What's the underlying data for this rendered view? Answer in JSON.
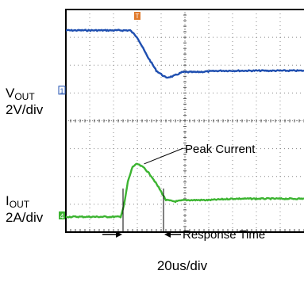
{
  "chart_data": {
    "type": "line",
    "title": "",
    "xlabel": "20us/div",
    "x_range_div": [
      0,
      10
    ],
    "grid": true,
    "grid_divisions": {
      "x": 10,
      "y": 8
    },
    "background": "#ffffff",
    "series": [
      {
        "channel": "1",
        "color": "#1f4fb0",
        "label_main": "V",
        "label_sub": "OUT",
        "scale": "2V/div",
        "marker_level_div": 5.1,
        "points_div": [
          [
            0.0,
            7.25
          ],
          [
            2.7,
            7.25
          ],
          [
            3.0,
            7.0
          ],
          [
            3.4,
            6.35
          ],
          [
            3.8,
            5.8
          ],
          [
            4.2,
            5.55
          ],
          [
            4.5,
            5.6
          ],
          [
            4.9,
            5.75
          ],
          [
            5.5,
            5.75
          ],
          [
            6.5,
            5.8
          ],
          [
            8.0,
            5.8
          ],
          [
            10.0,
            5.8
          ]
        ]
      },
      {
        "channel": "4",
        "color": "#3cb431",
        "label_main": "I",
        "label_sub": "OUT",
        "scale": "2A/div",
        "marker_level_div": 0.6,
        "points_div": [
          [
            0.0,
            0.55
          ],
          [
            2.3,
            0.55
          ],
          [
            2.45,
            1.0
          ],
          [
            2.6,
            1.8
          ],
          [
            2.8,
            2.35
          ],
          [
            3.0,
            2.45
          ],
          [
            3.3,
            2.3
          ],
          [
            3.6,
            2.0
          ],
          [
            3.9,
            1.6
          ],
          [
            4.2,
            1.15
          ],
          [
            4.6,
            1.1
          ],
          [
            5.0,
            1.15
          ],
          [
            6.0,
            1.15
          ],
          [
            7.0,
            1.2
          ],
          [
            8.0,
            1.2
          ],
          [
            10.0,
            1.2
          ]
        ]
      }
    ],
    "annotations": [
      {
        "text": "Peak Current",
        "target_div": [
          2.95,
          2.45
        ]
      },
      {
        "text": "Response Time",
        "span_div": [
          2.4,
          4.1
        ]
      }
    ],
    "markers": {
      "trigger": {
        "label": "T",
        "color": "#e07a2c",
        "x_div": 3.0
      },
      "ch1": {
        "label": "1",
        "color": "#1f4fb0"
      },
      "ch4": {
        "label": "4",
        "color": "#3cb431"
      }
    }
  }
}
